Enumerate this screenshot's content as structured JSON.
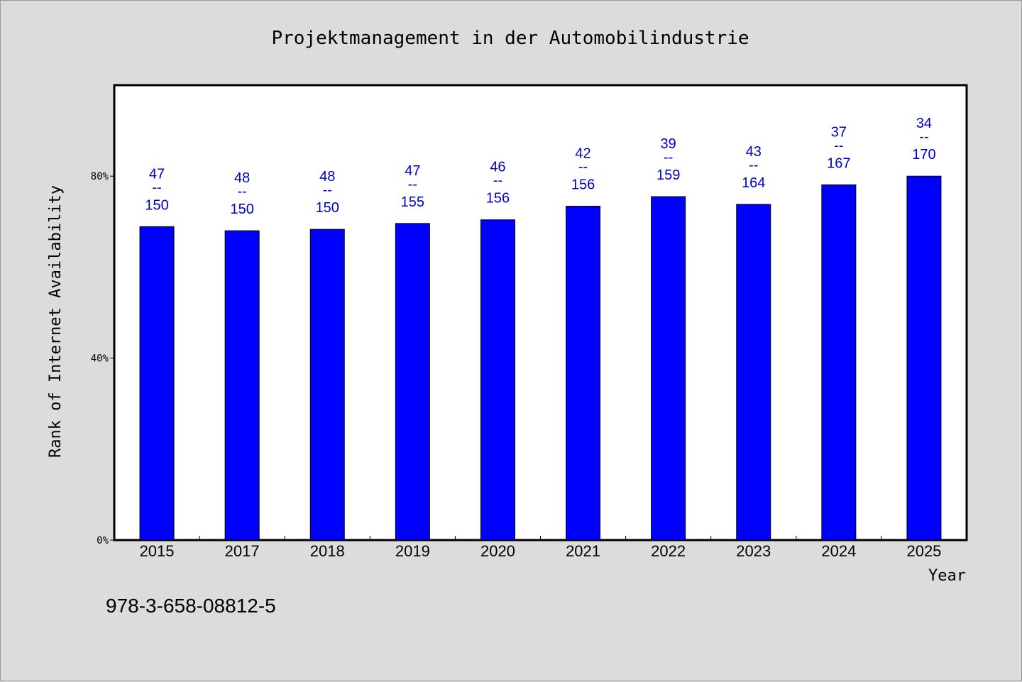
{
  "chart_data": {
    "type": "bar",
    "title": "Projektmanagement in der Automobilindustrie",
    "xlabel": "Year",
    "ylabel": "Rank of Internet Availability",
    "categories": [
      "2015",
      "2017",
      "2018",
      "2019",
      "2020",
      "2021",
      "2022",
      "2023",
      "2024",
      "2025"
    ],
    "values": [
      68.9,
      68.0,
      68.3,
      69.6,
      70.4,
      73.4,
      75.5,
      73.8,
      78.1,
      80.0
    ],
    "ylim": [
      0,
      100
    ],
    "yticks": [
      {
        "value": 0,
        "label": "0%"
      },
      {
        "value": 40,
        "label": "40%"
      },
      {
        "value": 80,
        "label": "80%"
      }
    ],
    "bar_labels": [
      {
        "top": "47",
        "sep": "--",
        "bottom": "150"
      },
      {
        "top": "48",
        "sep": "--",
        "bottom": "150"
      },
      {
        "top": "48",
        "sep": "--",
        "bottom": "150"
      },
      {
        "top": "47",
        "sep": "--",
        "bottom": "155"
      },
      {
        "top": "46",
        "sep": "--",
        "bottom": "156"
      },
      {
        "top": "42",
        "sep": "--",
        "bottom": "156"
      },
      {
        "top": "39",
        "sep": "--",
        "bottom": "159"
      },
      {
        "top": "43",
        "sep": "--",
        "bottom": "164"
      },
      {
        "top": "37",
        "sep": "--",
        "bottom": "167"
      },
      {
        "top": "34",
        "sep": "--",
        "bottom": "170"
      }
    ],
    "grid": false,
    "bar_color": "#0000ff",
    "label_color": "#0000cc",
    "plot_background": "#ffffff"
  },
  "footer": {
    "isbn": "978-3-658-08812-5"
  }
}
